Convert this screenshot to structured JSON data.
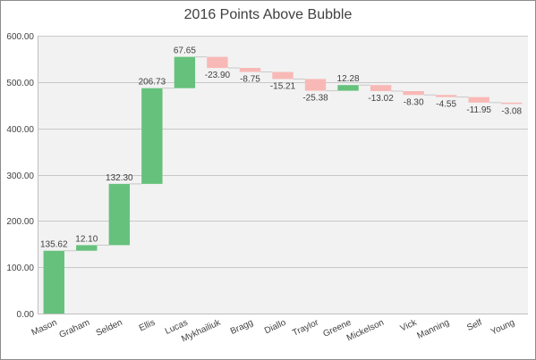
{
  "chart_data": {
    "type": "waterfall",
    "title": "2016 Points Above Bubble",
    "categories": [
      "Mason",
      "Graham",
      "Selden",
      "Ellis",
      "Lucas",
      "Mykhailiuk",
      "Bragg",
      "Diallo",
      "Traylor",
      "Greene",
      "Mickelson",
      "Vick",
      "Manning",
      "Self",
      "Young"
    ],
    "values": [
      135.62,
      12.1,
      132.3,
      206.73,
      67.65,
      -23.9,
      -8.75,
      -15.21,
      -25.38,
      12.28,
      -13.02,
      -8.3,
      -4.55,
      -11.95,
      -3.08
    ],
    "labels": [
      "135.62",
      "12.10",
      "132.30",
      "206.73",
      "67.65",
      "-23.90",
      "-8.75",
      "-15.21",
      "-25.38",
      "12.28",
      "-13.02",
      "-8.30",
      "-4.55",
      "-11.95",
      "-3.08"
    ],
    "ylim": [
      0,
      600
    ],
    "yticks": [
      "0.00",
      "100.00",
      "200.00",
      "300.00",
      "400.00",
      "500.00",
      "600.00"
    ],
    "grid": true,
    "colors": {
      "increase": "#66c17c",
      "decrease": "#f8b9b6",
      "connector": "#c8c8c8",
      "plot_bg": "#f2f2f2",
      "grid": "#c8c8c8"
    }
  }
}
